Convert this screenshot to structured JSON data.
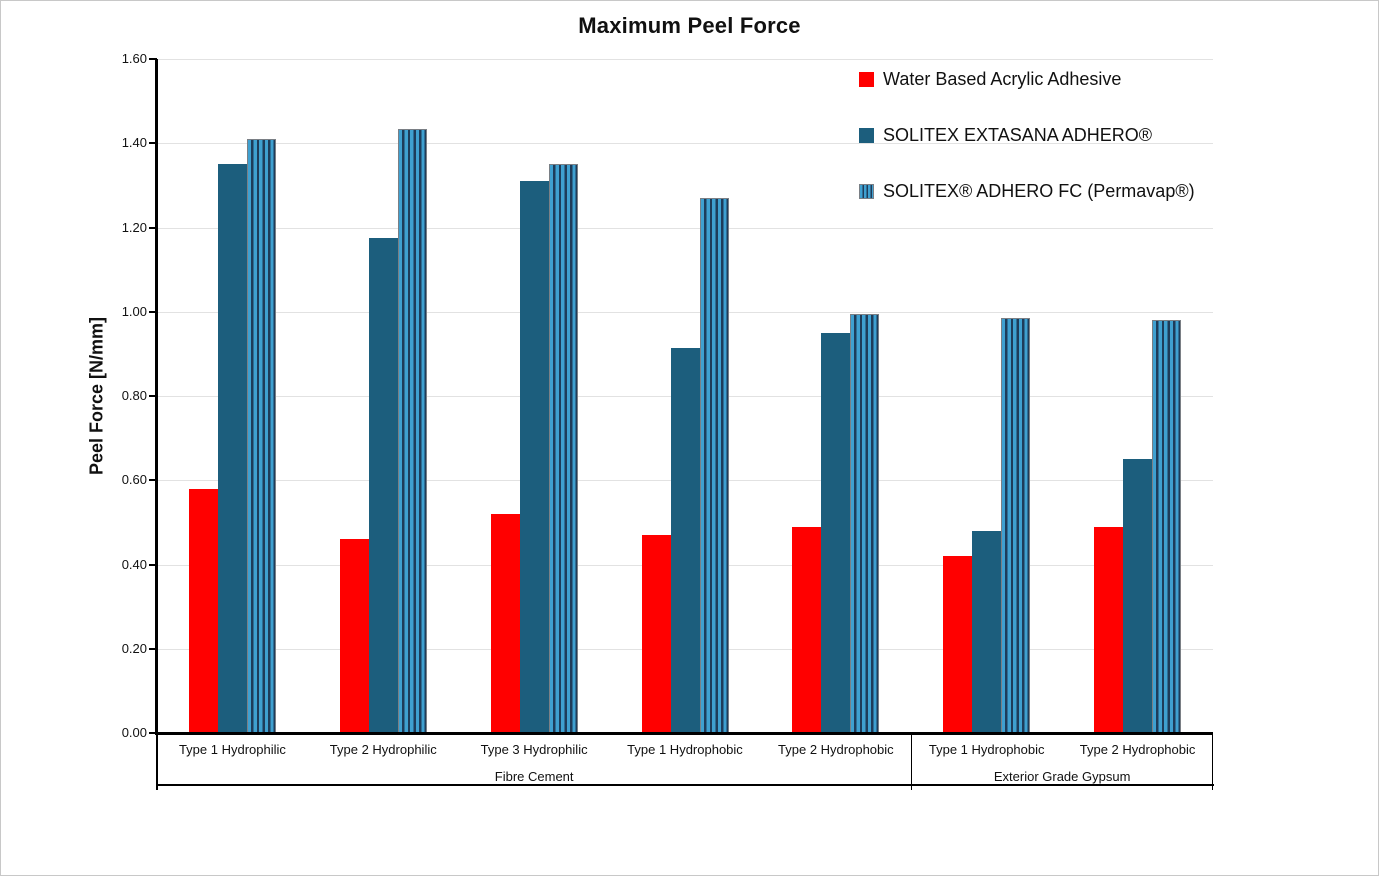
{
  "title": "Maximum Peel Force",
  "chart_data": {
    "type": "bar",
    "title": "Maximum Peel Force",
    "xlabel": "",
    "ylabel": "Peel Force [N/mm]",
    "ylim": [
      0,
      1.6
    ],
    "ytick_step": 0.2,
    "ytick_decimals": 2,
    "grid": true,
    "legend_position": "top-right",
    "categories": [
      "Type 1 Hydrophilic",
      "Type 2 Hydrophilic",
      "Type 3 Hydrophilic",
      "Type 1 Hydrophobic",
      "Type 2 Hydrophobic",
      "Type 1 Hydrophobic",
      "Type 2 Hydrophobic"
    ],
    "category_groups": [
      {
        "label": "Fibre Cement",
        "start": 0,
        "end": 4
      },
      {
        "label": "Exterior Grade Gypsum",
        "start": 5,
        "end": 6
      }
    ],
    "series": [
      {
        "name": "Water Based Acrylic Adhesive",
        "style": "solid",
        "color": "#ff0000",
        "values": [
          0.58,
          0.46,
          0.52,
          0.47,
          0.49,
          0.42,
          0.49
        ]
      },
      {
        "name": "SOLITEX EXTASANA ADHERO®",
        "style": "solid",
        "color": "#1c5e7d",
        "values": [
          1.35,
          1.175,
          1.31,
          0.915,
          0.95,
          0.48,
          0.65
        ]
      },
      {
        "name": "SOLITEX® ADHERO FC (Permavap®)",
        "style": "striped",
        "stripe_light": "#3fa0d0",
        "stripe_dark": "#1e3c5a",
        "border_color": "#7a7f85",
        "values": [
          1.41,
          1.435,
          1.35,
          1.27,
          0.995,
          0.985,
          0.98
        ]
      }
    ],
    "colors": {
      "gridline": "#e2e2e2",
      "axis": "#000000",
      "background": "#ffffff"
    }
  }
}
